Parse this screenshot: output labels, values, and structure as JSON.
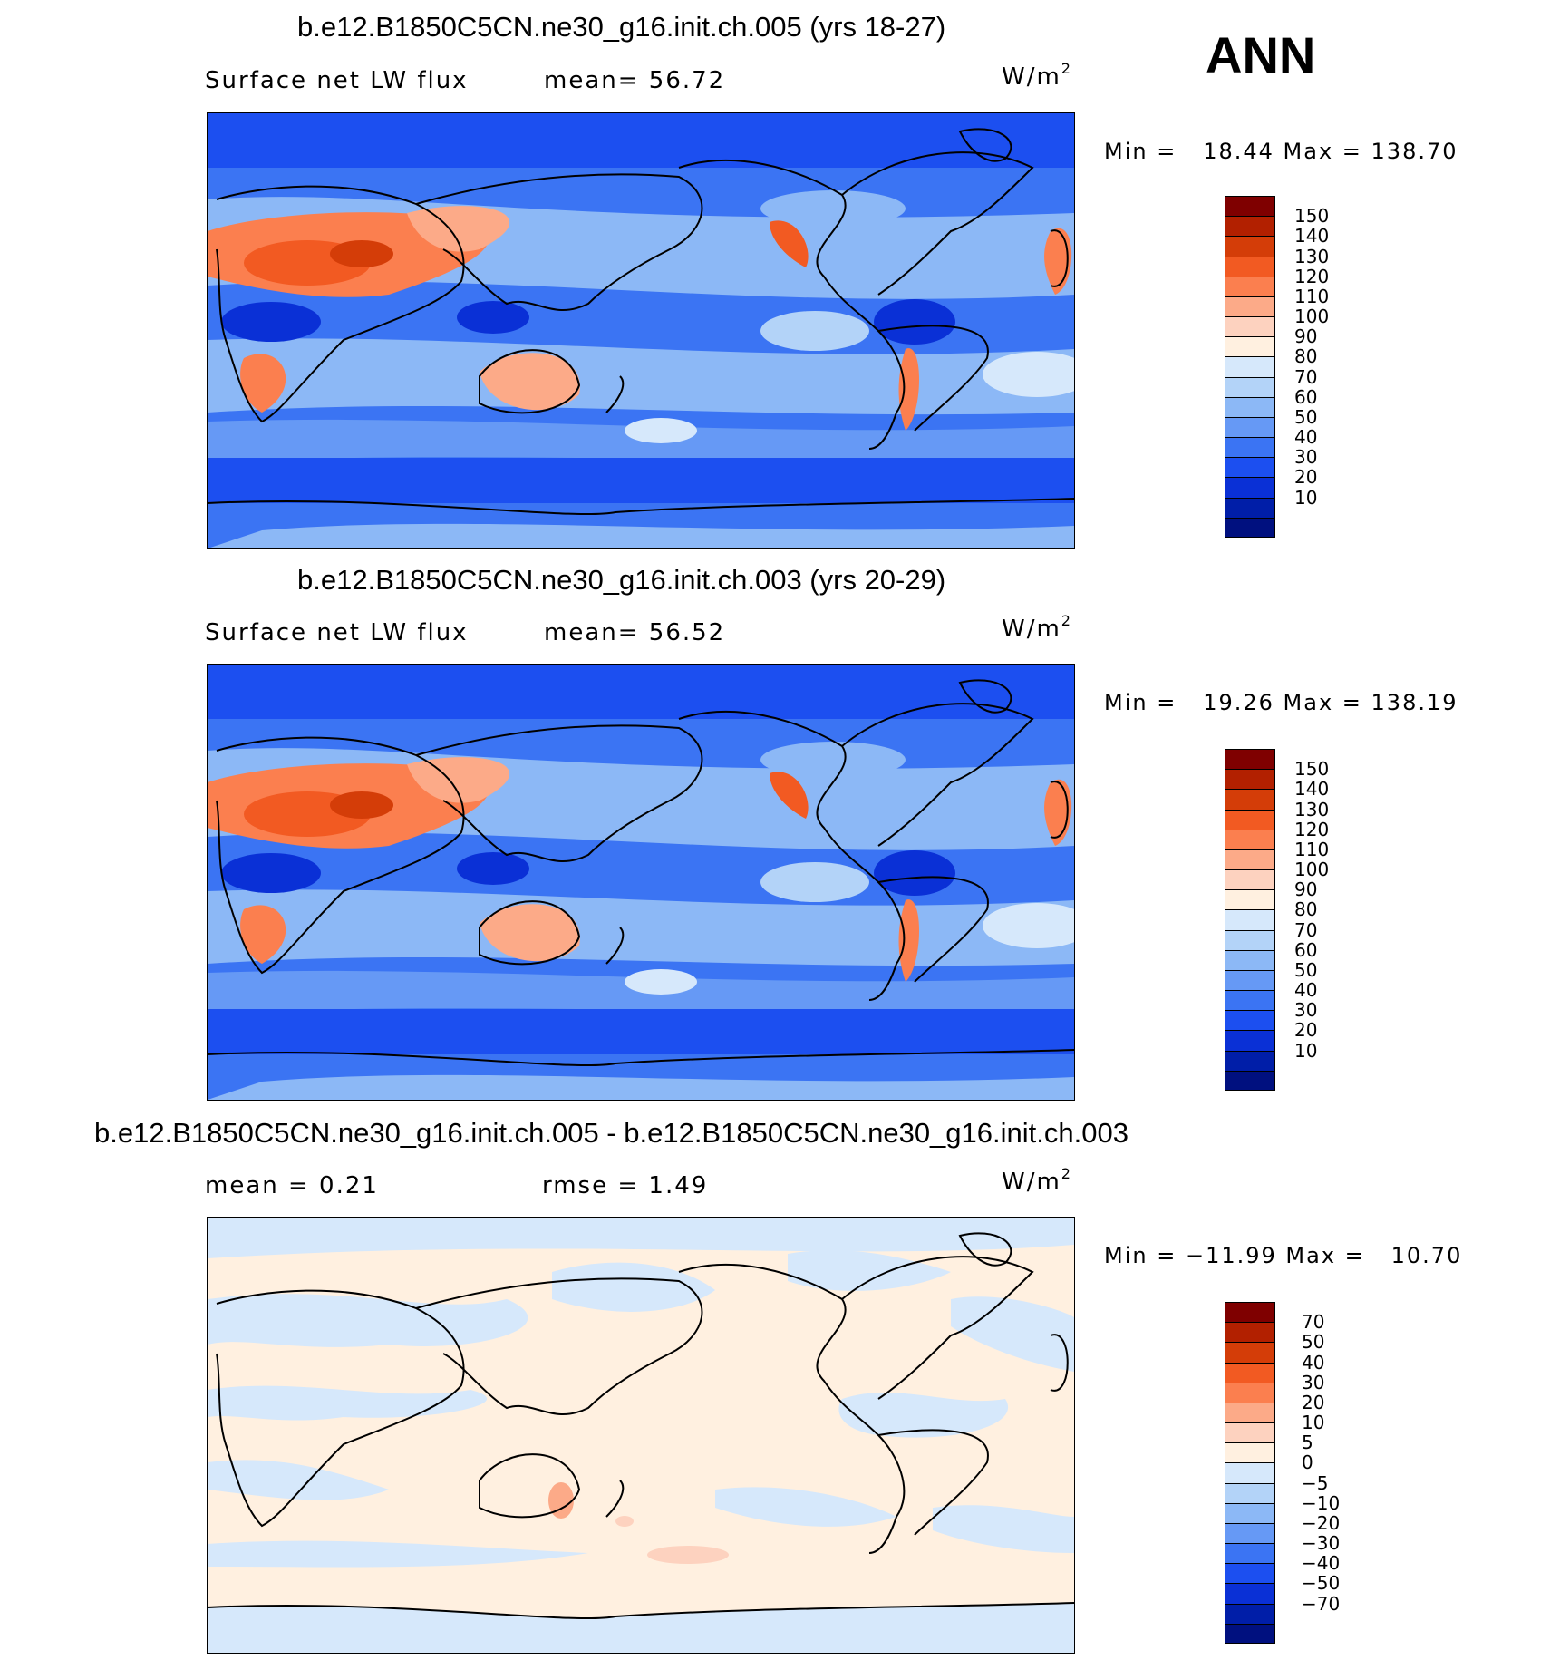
{
  "season": "ANN",
  "panels": [
    {
      "title": "b.e12.B1850C5CN.ne30_g16.init.ch.005 (yrs 18-27)",
      "left_label": "Surface net LW flux",
      "center_label": "mean=  56.72",
      "units_base": "W/m",
      "units_exp": "2",
      "minmax": "Min =   18.44 Max = 138.70",
      "colorbar": {
        "colors": [
          "#7f0000",
          "#b22000",
          "#d43d08",
          "#f25a22",
          "#fb7f4f",
          "#fcaa88",
          "#fdd2bf",
          "#fff0e0",
          "#d6e8fb",
          "#b3d3f8",
          "#8cb8f6",
          "#6699f5",
          "#3b74f3",
          "#1c4ff0",
          "#0a30d6",
          "#001ea8",
          "#00107f"
        ],
        "labels": [
          "150",
          "140",
          "130",
          "120",
          "110",
          "100",
          "90",
          "80",
          "70",
          "60",
          "50",
          "40",
          "30",
          "20",
          "10"
        ]
      }
    },
    {
      "title": "b.e12.B1850C5CN.ne30_g16.init.ch.003 (yrs 20-29)",
      "left_label": "Surface net LW flux",
      "center_label": "mean=  56.52",
      "units_base": "W/m",
      "units_exp": "2",
      "minmax": "Min =   19.26 Max = 138.19",
      "colorbar": {
        "colors": [
          "#7f0000",
          "#b22000",
          "#d43d08",
          "#f25a22",
          "#fb7f4f",
          "#fcaa88",
          "#fdd2bf",
          "#fff0e0",
          "#d6e8fb",
          "#b3d3f8",
          "#8cb8f6",
          "#6699f5",
          "#3b74f3",
          "#1c4ff0",
          "#0a30d6",
          "#001ea8",
          "#00107f"
        ],
        "labels": [
          "150",
          "140",
          "130",
          "120",
          "110",
          "100",
          "90",
          "80",
          "70",
          "60",
          "50",
          "40",
          "30",
          "20",
          "10"
        ]
      }
    },
    {
      "title": "b.e12.B1850C5CN.ne30_g16.init.ch.005 - b.e12.B1850C5CN.ne30_g16.init.ch.003",
      "left_label": "mean =    0.21",
      "center_label": "rmse =    1.49",
      "units_base": "W/m",
      "units_exp": "2",
      "minmax": "Min = −11.99 Max =   10.70",
      "colorbar": {
        "colors": [
          "#7f0000",
          "#b22000",
          "#d43d08",
          "#f25a22",
          "#fb7f4f",
          "#fcaa88",
          "#fdd2bf",
          "#fff0e0",
          "#d6e8fb",
          "#b3d3f8",
          "#8cb8f6",
          "#6699f5",
          "#3b74f3",
          "#1c4ff0",
          "#0a30d6",
          "#001ea8",
          "#00107f"
        ],
        "labels": [
          "70",
          "50",
          "40",
          "30",
          "20",
          "10",
          "5",
          "0",
          "−5",
          "−10",
          "−20",
          "−30",
          "−40",
          "−50",
          "−70"
        ]
      }
    }
  ]
}
